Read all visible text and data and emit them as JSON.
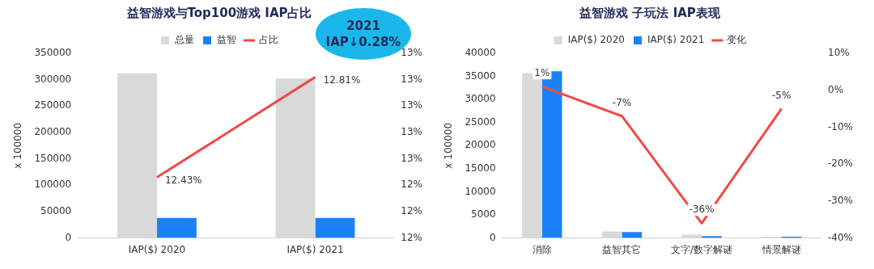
{
  "chart_data": [
    {
      "type": "bar",
      "title": "益智游戏与Top100游戏 IAP占比",
      "ylabel": "x 100000",
      "categories": [
        "IAP($) 2020",
        "IAP($) 2021"
      ],
      "series": [
        {
          "name": "总量",
          "color": "#d9d9d9",
          "values": [
            312000,
            302000
          ]
        },
        {
          "name": "益智",
          "color": "#1a82f7",
          "values": [
            38000,
            38000
          ]
        },
        {
          "name": "占比",
          "type": "line",
          "axis": "y2",
          "color": "#f04a45",
          "values": [
            12.43,
            12.81
          ],
          "value_labels": [
            "12.43%",
            "12.81%"
          ]
        }
      ],
      "ylim": [
        0,
        350000
      ],
      "yticks": [
        0,
        50000,
        100000,
        150000,
        200000,
        250000,
        300000,
        350000
      ],
      "y2lim": [
        12.2,
        12.9
      ],
      "y2ticks": [
        {
          "value": 12.2,
          "label": "12%"
        },
        {
          "value": 12.3,
          "label": "12%"
        },
        {
          "value": 12.4,
          "label": "12%"
        },
        {
          "value": 12.5,
          "label": "13%"
        },
        {
          "value": 12.6,
          "label": "13%"
        },
        {
          "value": 12.7,
          "label": "13%"
        },
        {
          "value": 12.8,
          "label": "13%"
        },
        {
          "value": 12.9,
          "label": "13%"
        }
      ],
      "annotations": [
        "2021\nIAP↓0.28%"
      ],
      "legend": "top",
      "grid": false,
      "marker": "none"
    },
    {
      "type": "bar",
      "title": "益智游戏 子玩法 IAP表现",
      "ylabel": "x 100000",
      "categories": [
        "消除",
        "益智其它",
        "文字/数字解谜",
        "情景解谜"
      ],
      "series": [
        {
          "name": "IAP($) 2020",
          "color": "#d9d9d9",
          "values": [
            35700,
            1400,
            700,
            300
          ]
        },
        {
          "name": "IAP($) 2021",
          "color": "#1a82f7",
          "values": [
            36100,
            1300,
            400,
            300
          ]
        },
        {
          "name": "变化",
          "type": "line",
          "axis": "y2",
          "color": "#f04a45",
          "values": [
            1,
            -7,
            -36,
            -5
          ],
          "value_labels": [
            "1%",
            "-7%",
            "-36%",
            "-5%"
          ]
        }
      ],
      "ylim": [
        0,
        40000
      ],
      "yticks": [
        0,
        5000,
        10000,
        15000,
        20000,
        25000,
        30000,
        35000,
        40000
      ],
      "y2lim": [
        -40,
        10
      ],
      "y2ticks": [
        {
          "value": -40,
          "label": "-40%"
        },
        {
          "value": -30,
          "label": "-30%"
        },
        {
          "value": -20,
          "label": "-20%"
        },
        {
          "value": -10,
          "label": "-10%"
        },
        {
          "value": 0,
          "label": "0%"
        },
        {
          "value": 10,
          "label": "10%"
        }
      ],
      "legend": "top",
      "grid": false,
      "marker": "none"
    }
  ]
}
